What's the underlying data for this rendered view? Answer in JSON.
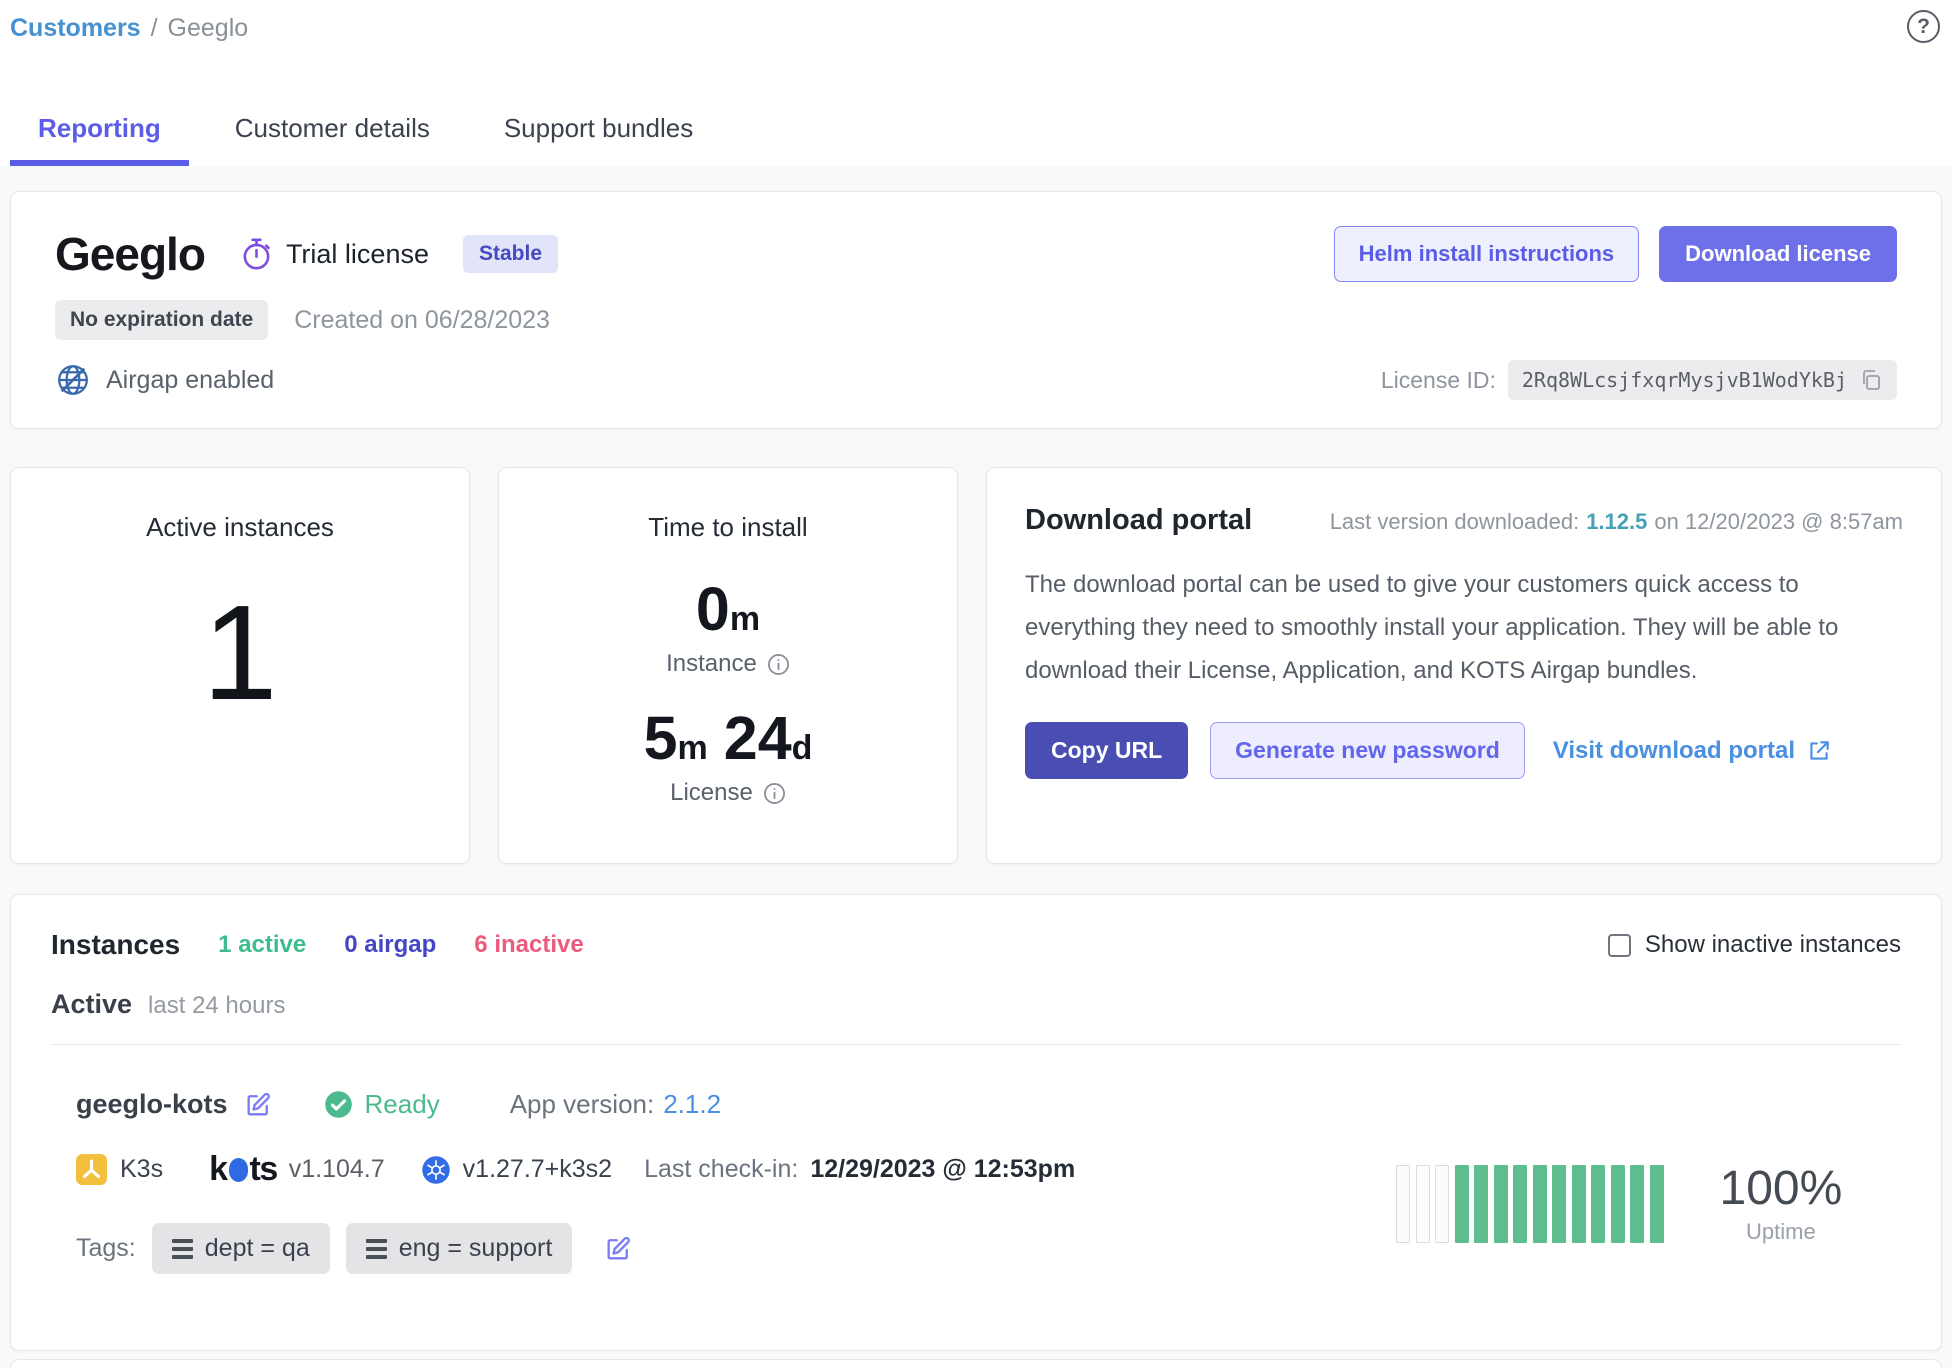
{
  "colors": {
    "accent_purple": "#5b5de8",
    "primary_button": "#6e70ea",
    "dark_button": "#4a4eb2",
    "link_blue": "#4a90e2",
    "breadcrumb_blue": "#4591d2",
    "version_teal": "#45a2b4",
    "status_green": "#4cba8e",
    "airgap_indigo": "#4446c6",
    "inactive_red": "#ec5b7d",
    "k8s_blue": "#326de5",
    "k3s_yellow": "#f2c03c"
  },
  "breadcrumb": {
    "link": "Customers",
    "separator": "/",
    "current": "Geeglo"
  },
  "header": {
    "help": "?"
  },
  "tabs": [
    {
      "label": "Reporting"
    },
    {
      "label": "Customer details"
    },
    {
      "label": "Support bundles"
    }
  ],
  "license_card": {
    "app_name": "Geeglo",
    "license_type": "Trial license",
    "channel_badge": "Stable",
    "expiration_badge": "No expiration date",
    "created": "Created on 06/28/2023",
    "airgap": "Airgap enabled",
    "helm_button": "Helm install instructions",
    "download_button": "Download license",
    "license_id_label": "License ID:",
    "license_id": "2Rq8WLcsjfxqrMysjvB1WodYkBj"
  },
  "stats": {
    "active_instances": {
      "title": "Active instances",
      "value": "1"
    },
    "time_to_install": {
      "title": "Time to install",
      "instance": {
        "num": "0",
        "unit": "m",
        "label": "Instance"
      },
      "license": {
        "num1": "5",
        "unit1": "m",
        "num2": "24",
        "unit2": "d",
        "label": "License"
      }
    }
  },
  "download_portal": {
    "title": "Download portal",
    "last_version_label": "Last version downloaded:",
    "last_version": "1.12.5",
    "last_version_date": "on 12/20/2023 @ 8:57am",
    "description": "The download portal can be used to give your customers quick access to everything they need to smoothly install your application. They will be able to download their License, Application, and KOTS Airgap bundles.",
    "copy_url_button": "Copy URL",
    "generate_password_button": "Generate new password",
    "visit_portal_link": "Visit download portal"
  },
  "instances": {
    "title": "Instances",
    "counts": [
      {
        "label": "1 active"
      },
      {
        "label": "0 airgap"
      },
      {
        "label": "6 inactive"
      }
    ],
    "show_inactive_label": "Show inactive instances",
    "section_label": "Active",
    "section_sublabel": "last 24 hours",
    "rows": [
      {
        "name": "geeglo-kots",
        "status": "Ready",
        "app_version_label": "App version:",
        "app_version": "2.1.2",
        "distribution": "K3s",
        "kots_wordmark": {
          "pre": "k",
          "post": "ts"
        },
        "kots_version": "v1.104.7",
        "kubernetes_version": "v1.27.7+k3s2",
        "checkin_label": "Last check-in:",
        "checkin_value": "12/29/2023 @ 12:53pm",
        "tags_label": "Tags:",
        "tags": [
          "dept = qa",
          "eng = support"
        ],
        "uptime": {
          "percent": "100%",
          "label": "Uptime",
          "bars": [
            "empty",
            "empty",
            "empty",
            "filled",
            "filled",
            "filled",
            "filled",
            "filled",
            "filled",
            "filled",
            "filled",
            "filled",
            "filled",
            "filled"
          ]
        }
      }
    ]
  }
}
